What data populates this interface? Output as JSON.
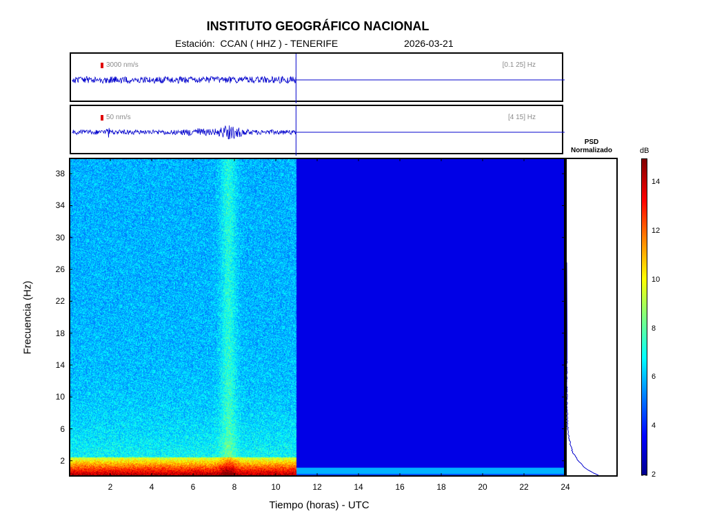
{
  "header": {
    "title": "INSTITUTO GEOGRÁFICO NACIONAL",
    "station_line": "Estación:  CCAN ( HHZ ) - TENERIFE",
    "date": "2026-03-21"
  },
  "traces": [
    {
      "scale": "3000 nm/s",
      "band": "[0.1 25] Hz"
    },
    {
      "scale": "50 nm/s",
      "band": "[4 15] Hz"
    }
  ],
  "psd": {
    "title_line1": "PSD",
    "title_line2": "Normalizado"
  },
  "colorbar": {
    "unit": "dB",
    "ticks": [
      "2",
      "4",
      "6",
      "8",
      "10",
      "12",
      "14"
    ],
    "range": [
      2,
      15
    ],
    "colormap": "jet"
  },
  "chart_data": {
    "type": "heatmap",
    "title": "INSTITUTO GEOGRÁFICO NACIONAL",
    "xlabel": "Tiempo (horas) - UTC",
    "ylabel": "Frecuencia  (Hz)",
    "xlim": [
      0,
      24
    ],
    "ylim": [
      0,
      40
    ],
    "x_ticks": [
      "2",
      "4",
      "6",
      "8",
      "10",
      "12",
      "14",
      "16",
      "18",
      "20",
      "22",
      "24"
    ],
    "y_ticks": [
      "2",
      "6",
      "10",
      "14",
      "18",
      "22",
      "26",
      "30",
      "34",
      "38"
    ],
    "data_end_hour": 11,
    "colors": {
      "background": "#00008f",
      "trace": "#0000cc",
      "axis": "#000000"
    }
  }
}
